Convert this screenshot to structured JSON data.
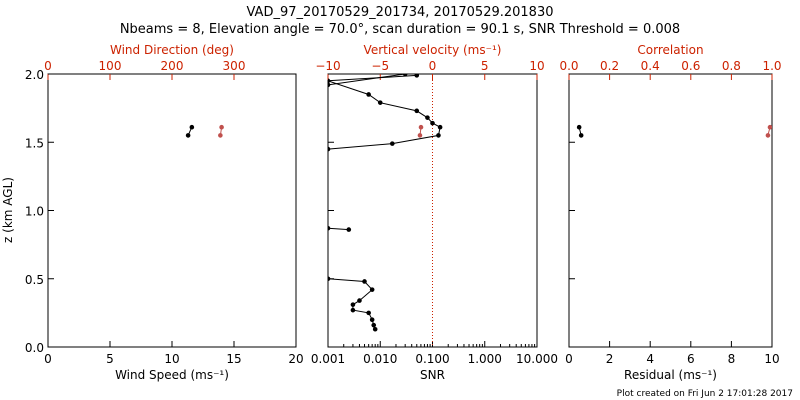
{
  "figure": {
    "title_line1": "VAD_97_20170529_201734, 20170529.201830",
    "title_line2": "Nbeams = 8, Elevation angle = 70.0°, scan duration = 90.1 s, SNR Threshold = 0.008",
    "footer": "Plot created on Fri Jun  2 17:01:28 2017",
    "y_axis_label": "z (km AGL)"
  },
  "colors": {
    "axis": "#000000",
    "accent": "#cc2200",
    "series_black": "#000000",
    "series_red": "#c0504d"
  },
  "chart_data": [
    {
      "type": "scatter",
      "panel": "wind",
      "xlabel": "Wind Speed (ms⁻¹)",
      "xlim": [
        0,
        20
      ],
      "x_ticks": [
        "0",
        "5",
        "10",
        "15",
        "20"
      ],
      "top_xlabel": "Wind Direction (deg)",
      "top_xlim": [
        0,
        400
      ],
      "top_ticks": [
        "0",
        "100",
        "200",
        "300"
      ],
      "ylim": [
        0,
        2
      ],
      "y_ticks": [
        "0.0",
        "0.5",
        "1.0",
        "1.5",
        "2.0"
      ],
      "series": [
        {
          "axis": "bottom",
          "color": "black",
          "mode": "line-markers",
          "points": [
            [
              11.6,
              1.61
            ],
            [
              11.3,
              1.55
            ]
          ]
        },
        {
          "axis": "top",
          "color": "red",
          "mode": "line-markers",
          "points": [
            [
              280,
              1.61
            ],
            [
              278,
              1.55
            ]
          ]
        }
      ]
    },
    {
      "type": "line",
      "panel": "snr",
      "xlabel": "SNR",
      "xscale": "log",
      "xlim": [
        0.001,
        10
      ],
      "x_ticks": [
        "0.001",
        "0.010",
        "0.100",
        "1.000",
        "10.000"
      ],
      "top_xlabel": "Vertical velocity (ms⁻¹)",
      "top_xlim": [
        -10,
        10
      ],
      "top_ticks": [
        "−10",
        "−5",
        "0",
        "5",
        "10"
      ],
      "ylim": [
        0,
        2
      ],
      "reference_line_top_x": 0,
      "series": [
        {
          "axis": "bottom",
          "color": "black",
          "mode": "line-markers",
          "segments": [
            [
              [
                0.05,
                1.99
              ],
              [
                0.001,
                1.95
              ],
              [
                0.006,
                1.85
              ],
              [
                0.01,
                1.79
              ],
              [
                0.05,
                1.73
              ],
              [
                0.08,
                1.68
              ],
              [
                0.1,
                1.64
              ],
              [
                0.14,
                1.61
              ],
              [
                0.13,
                1.55
              ],
              [
                0.017,
                1.49
              ],
              [
                0.001,
                1.45
              ]
            ],
            [
              [
                0.001,
                1.92
              ],
              [
                0.03,
                2.0
              ]
            ],
            [
              [
                0.001,
                0.87
              ],
              [
                0.0025,
                0.86
              ]
            ],
            [
              [
                0.001,
                0.5
              ],
              [
                0.005,
                0.48
              ],
              [
                0.007,
                0.42
              ],
              [
                0.004,
                0.34
              ],
              [
                0.003,
                0.31
              ],
              [
                0.003,
                0.27
              ],
              [
                0.006,
                0.25
              ],
              [
                0.007,
                0.2
              ],
              [
                0.0075,
                0.16
              ],
              [
                0.008,
                0.13
              ]
            ]
          ]
        },
        {
          "axis": "top",
          "color": "red",
          "mode": "line-markers",
          "points": [
            [
              -1.1,
              1.61
            ],
            [
              -1.2,
              1.55
            ]
          ]
        }
      ]
    },
    {
      "type": "scatter",
      "panel": "residual",
      "xlabel": "Residual (ms⁻¹)",
      "xlim": [
        0,
        10
      ],
      "x_ticks": [
        "0",
        "2",
        "4",
        "6",
        "8",
        "10"
      ],
      "top_xlabel": "Correlation",
      "top_xlim": [
        0,
        1
      ],
      "top_ticks": [
        "0.0",
        "0.2",
        "0.4",
        "0.6",
        "0.8",
        "1.0"
      ],
      "ylim": [
        0,
        2
      ],
      "series": [
        {
          "axis": "bottom",
          "color": "black",
          "mode": "line-markers",
          "points": [
            [
              0.5,
              1.61
            ],
            [
              0.6,
              1.55
            ]
          ]
        },
        {
          "axis": "top",
          "color": "red",
          "mode": "line-markers",
          "points": [
            [
              0.99,
              1.61
            ],
            [
              0.98,
              1.55
            ]
          ]
        }
      ]
    }
  ]
}
